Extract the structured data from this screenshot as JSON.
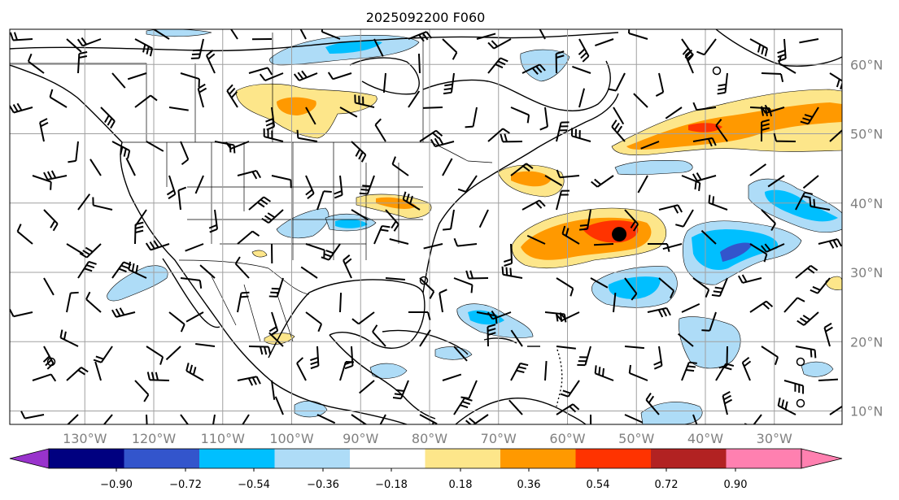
{
  "title": "2025092200 F060",
  "map": {
    "lat_labels": [
      "60°N",
      "50°N",
      "40°N",
      "30°N",
      "20°N",
      "10°N"
    ],
    "lon_labels": [
      "130°W",
      "120°W",
      "110°W",
      "100°W",
      "90°W",
      "80°W",
      "70°W",
      "60°W",
      "50°W",
      "40°W",
      "30°W"
    ],
    "gridline_color": "#a0a0a0",
    "markers": [
      {
        "name": "storm-center-marker",
        "type": "filled-circle",
        "lat": 35.5,
        "lon": -52.5
      }
    ]
  },
  "colorbar": {
    "ticks": [
      "−0.90",
      "−0.72",
      "−0.54",
      "−0.36",
      "−0.18",
      "0.18",
      "0.36",
      "0.54",
      "0.72",
      "0.90"
    ],
    "extend": "both",
    "colors": [
      "#9933cc",
      "#000080",
      "#3355cc",
      "#00bfff",
      "#aedcf7",
      "#ffffff",
      "#fde68a",
      "#ff9900",
      "#ff3300",
      "#b22222",
      "#ff80b0"
    ]
  },
  "anomaly_fields": {
    "positive": [
      {
        "region": "central Canada",
        "lat": 53,
        "lon": -95,
        "peak": 0.54
      },
      {
        "region": "Ohio Valley",
        "lat": 39.5,
        "lon": -84,
        "peak": 0.54
      },
      {
        "region": "off New England / Nova Scotia",
        "lat": 43,
        "lon": -66,
        "peak": 0.54
      },
      {
        "region": "North Atlantic band",
        "lat": 48,
        "lon": -45,
        "peak": 0.72
      },
      {
        "region": "central Atlantic (storm)",
        "lat": 35.5,
        "lon": -55,
        "peak": 0.72
      }
    ],
    "negative": [
      {
        "region": "Hudson Bay / Labrador",
        "lat": 61,
        "lon": -90,
        "peak": -0.36
      },
      {
        "region": "central Atlantic east",
        "lat": 33,
        "lon": -38,
        "peak": -0.72
      },
      {
        "region": "northeast Atlantic",
        "lat": 39,
        "lon": -32,
        "peak": -0.54
      },
      {
        "region": "subtropical Atlantic",
        "lat": 27,
        "lon": -54,
        "peak": -0.54
      },
      {
        "region": "Caribbean / Antilles",
        "lat": 22,
        "lon": -70,
        "peak": -0.54
      },
      {
        "region": "eastern Pacific off Baja",
        "lat": 29,
        "lon": -116,
        "peak": -0.36
      },
      {
        "region": "southern Plains",
        "lat": 36,
        "lon": -93,
        "peak": -0.36
      }
    ]
  }
}
